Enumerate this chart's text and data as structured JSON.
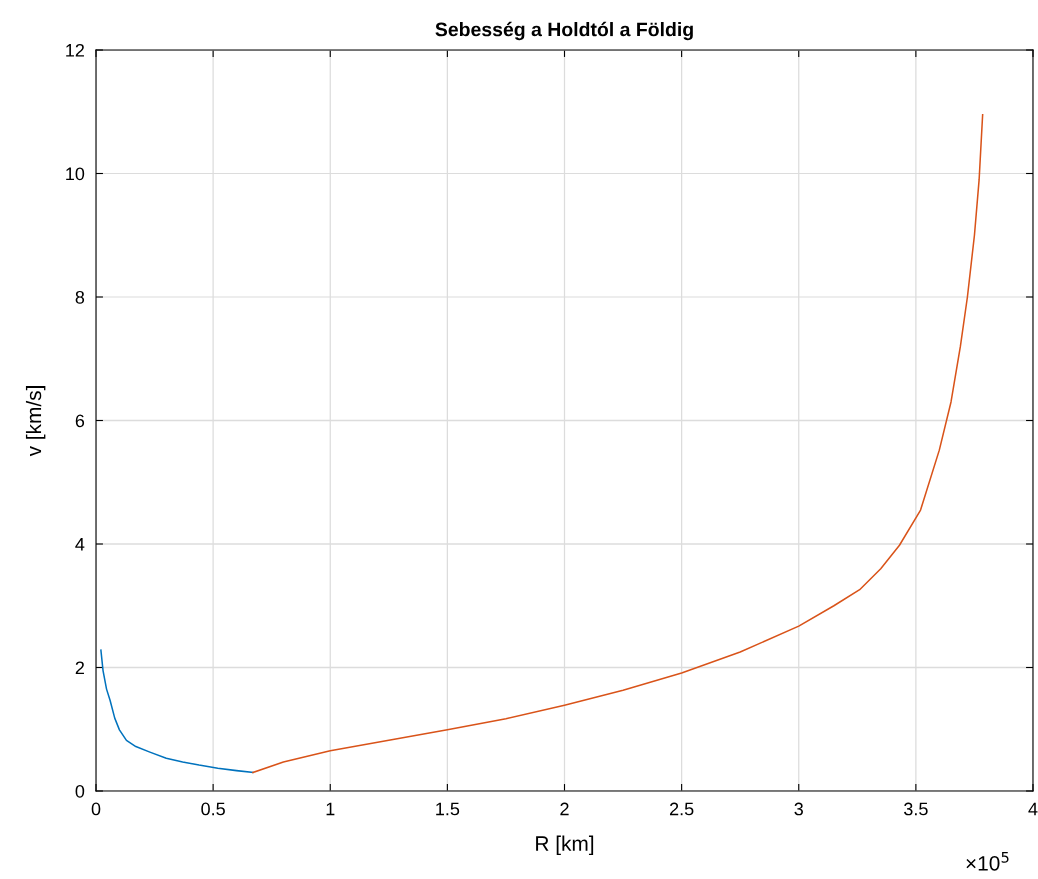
{
  "chart_data": {
    "type": "line",
    "title": "Sebesség a Holdtól a Földig",
    "xlabel": "R [km]",
    "ylabel": "v [km/s]",
    "annotations": [
      "×10$^{5}$"
    ],
    "series": [
      {
        "color": "#0072bd",
        "x": [
          0.021,
          0.03,
          0.045,
          0.06,
          0.08,
          0.1,
          0.13,
          0.17,
          0.23,
          0.3,
          0.37,
          0.44,
          0.52,
          0.6,
          0.67
        ],
        "values": [
          2.28,
          1.95,
          1.65,
          1.47,
          1.18,
          0.99,
          0.82,
          0.72,
          0.63,
          0.53,
          0.47,
          0.42,
          0.37,
          0.33,
          0.3
        ]
      },
      {
        "color": "#d95319",
        "x": [
          0.67,
          0.8,
          1.0,
          1.25,
          1.5,
          1.75,
          2.0,
          2.25,
          2.5,
          2.75,
          3.0,
          3.15,
          3.26,
          3.35,
          3.43,
          3.52,
          3.6,
          3.65,
          3.69,
          3.72,
          3.75,
          3.77,
          3.785
        ],
        "values": [
          0.3,
          0.47,
          0.65,
          0.82,
          0.99,
          1.17,
          1.39,
          1.63,
          1.91,
          2.25,
          2.67,
          3.0,
          3.26,
          3.6,
          3.98,
          4.55,
          5.52,
          6.3,
          7.2,
          8.0,
          9.0,
          9.9,
          10.95
        ]
      }
    ],
    "xlim": [
      0,
      4
    ],
    "xticks": [
      0,
      0.5,
      1,
      1.5,
      2,
      2.5,
      3,
      3.5,
      4
    ],
    "ylim": [
      0,
      12
    ],
    "yticks": [
      0,
      2,
      4,
      6,
      8,
      10,
      12
    ],
    "grid": true,
    "marker": "none",
    "line_style": "solid"
  }
}
